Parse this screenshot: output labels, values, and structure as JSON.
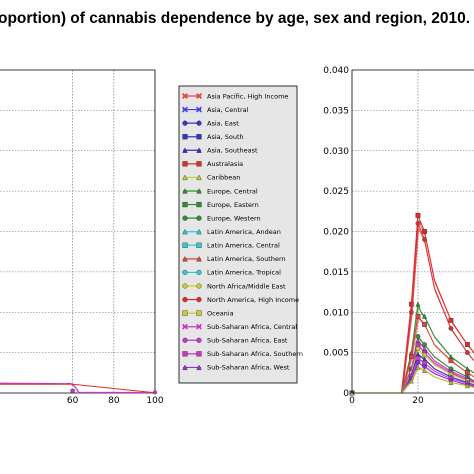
{
  "title": "oportion) of cannabis dependence by age, sex and region, 2010.",
  "chart_data": [
    {
      "type": "line",
      "panel": "left",
      "xlim": [
        15,
        100
      ],
      "xticks": [
        60,
        80,
        100
      ],
      "grid": true,
      "series_peak": 0.0012
    },
    {
      "type": "line",
      "panel": "right",
      "xlim": [
        0,
        37
      ],
      "ylim": [
        0,
        0.04
      ],
      "xticks": [
        0,
        20
      ],
      "yticks": [
        "0",
        "0.005",
        "0.010",
        "0.015",
        "0.020",
        "0.025",
        "0.030",
        "0.035",
        "0.040"
      ],
      "grid": true,
      "series": [
        {
          "name": "Australasia",
          "color": "#e32a2a",
          "x": [
            0,
            15,
            18,
            20,
            21,
            22,
            25,
            30,
            35,
            37
          ],
          "values": [
            0,
            0,
            0.011,
            0.022,
            0.021,
            0.02,
            0.014,
            0.009,
            0.006,
            0.005
          ]
        },
        {
          "name": "North America, High Income",
          "color": "#d93030",
          "x": [
            0,
            15,
            18,
            20,
            21,
            22,
            25,
            30,
            35,
            37
          ],
          "values": [
            0,
            0,
            0.01,
            0.021,
            0.02,
            0.019,
            0.013,
            0.008,
            0.005,
            0.004
          ]
        },
        {
          "name": "Europe, Western",
          "color": "#2f8f2f",
          "x": [
            0,
            15,
            18,
            20,
            21,
            22,
            25,
            30,
            35,
            37
          ],
          "values": [
            0,
            0,
            0.005,
            0.011,
            0.01,
            0.0095,
            0.007,
            0.0045,
            0.003,
            0.0025
          ]
        },
        {
          "name": "Latin America, Southern",
          "color": "#e04040",
          "x": [
            0,
            15,
            18,
            20,
            21,
            22,
            25,
            30,
            35,
            37
          ],
          "values": [
            0,
            0,
            0.0045,
            0.0095,
            0.009,
            0.0085,
            0.006,
            0.004,
            0.0025,
            0.002
          ]
        },
        {
          "name": "Europe, Central",
          "color": "#3c8c3c",
          "x": [
            0,
            15,
            18,
            20,
            21,
            22,
            25,
            30,
            35,
            37
          ],
          "values": [
            0,
            0,
            0.003,
            0.007,
            0.0065,
            0.006,
            0.0045,
            0.003,
            0.002,
            0.0015
          ]
        },
        {
          "name": "Sub-Saharan Africa, Central",
          "color": "#cc33cc",
          "x": [
            0,
            15,
            18,
            20,
            21,
            22,
            25,
            30,
            35,
            37
          ],
          "values": [
            0,
            0,
            0.003,
            0.0065,
            0.006,
            0.0055,
            0.004,
            0.0027,
            0.0018,
            0.0014
          ]
        },
        {
          "name": "Sub-Saharan Africa, East",
          "color": "#b63bb6",
          "x": [
            0,
            15,
            18,
            20,
            21,
            22,
            25,
            30,
            35,
            37
          ],
          "values": [
            0,
            0,
            0.0027,
            0.006,
            0.0055,
            0.005,
            0.0037,
            0.0025,
            0.0016,
            0.0013
          ]
        },
        {
          "name": "Caribbean",
          "color": "#cccc33",
          "x": [
            0,
            15,
            18,
            20,
            21,
            22,
            25,
            30,
            35,
            37
          ],
          "values": [
            0,
            0,
            0.0025,
            0.0055,
            0.005,
            0.0047,
            0.0035,
            0.0023,
            0.0015,
            0.0012
          ]
        },
        {
          "name": "Asia, South",
          "color": "#3333cc",
          "x": [
            0,
            15,
            18,
            20,
            21,
            22,
            25,
            30,
            35,
            37
          ],
          "values": [
            0,
            0,
            0.0022,
            0.0048,
            0.0045,
            0.0042,
            0.003,
            0.002,
            0.0013,
            0.001
          ]
        },
        {
          "name": "Sub-Saharan Africa, Southern",
          "color": "#cc44cc",
          "x": [
            0,
            15,
            18,
            20,
            21,
            22,
            25,
            30,
            35,
            37
          ],
          "values": [
            0,
            0,
            0.002,
            0.0043,
            0.004,
            0.0037,
            0.0027,
            0.0018,
            0.0012,
            0.0009
          ]
        },
        {
          "name": "Sub-Saharan Africa, West",
          "color": "#8a2be2",
          "x": [
            0,
            15,
            18,
            20,
            21,
            22,
            25,
            30,
            35,
            37
          ],
          "values": [
            0,
            0,
            0.0018,
            0.0038,
            0.0035,
            0.0033,
            0.0024,
            0.0016,
            0.001,
            0.0008
          ]
        },
        {
          "name": "North Africa/Middle East",
          "color": "#bbbb22",
          "x": [
            0,
            15,
            18,
            20,
            21,
            22,
            25,
            30,
            35,
            37
          ],
          "values": [
            0,
            0,
            0.0015,
            0.0032,
            0.003,
            0.0028,
            0.002,
            0.0013,
            0.0009,
            0.0007
          ]
        }
      ]
    }
  ],
  "legend": {
    "entries": [
      {
        "label": "Asia Pacific, High Income",
        "color": "#e8413c",
        "marker": "x"
      },
      {
        "label": "Asia, Central",
        "color": "#4040e0",
        "marker": "x"
      },
      {
        "label": "Asia, East",
        "color": "#3333cc",
        "marker": "circle"
      },
      {
        "label": "Asia, South",
        "color": "#3333cc",
        "marker": "square"
      },
      {
        "label": "Asia, Southeast",
        "color": "#3333cc",
        "marker": "triangle"
      },
      {
        "label": "Australasia",
        "color": "#e32a2a",
        "marker": "square"
      },
      {
        "label": "Caribbean",
        "color": "#cccc33",
        "marker": "triangle"
      },
      {
        "label": "Europe, Central",
        "color": "#2f8f2f",
        "marker": "triangle"
      },
      {
        "label": "Europe, Eastern",
        "color": "#2f8f2f",
        "marker": "square"
      },
      {
        "label": "Europe, Western",
        "color": "#2f8f2f",
        "marker": "circle"
      },
      {
        "label": "Latin America, Andean",
        "color": "#33cccc",
        "marker": "triangle"
      },
      {
        "label": "Latin America, Central",
        "color": "#33cccc",
        "marker": "square"
      },
      {
        "label": "Latin America, Southern",
        "color": "#e04040",
        "marker": "triangle"
      },
      {
        "label": "Latin America, Tropical",
        "color": "#33cccc",
        "marker": "circle"
      },
      {
        "label": "North Africa/Middle East",
        "color": "#cccc33",
        "marker": "circle"
      },
      {
        "label": "North America, High Income",
        "color": "#e32a2a",
        "marker": "circle"
      },
      {
        "label": "Oceania",
        "color": "#cccc33",
        "marker": "square"
      },
      {
        "label": "Sub-Saharan Africa, Central",
        "color": "#cc33cc",
        "marker": "x"
      },
      {
        "label": "Sub-Saharan Africa, East",
        "color": "#cc33cc",
        "marker": "circle"
      },
      {
        "label": "Sub-Saharan Africa, Southern",
        "color": "#cc33cc",
        "marker": "square"
      },
      {
        "label": "Sub-Saharan Africa, West",
        "color": "#9933cc",
        "marker": "triangle"
      }
    ]
  }
}
